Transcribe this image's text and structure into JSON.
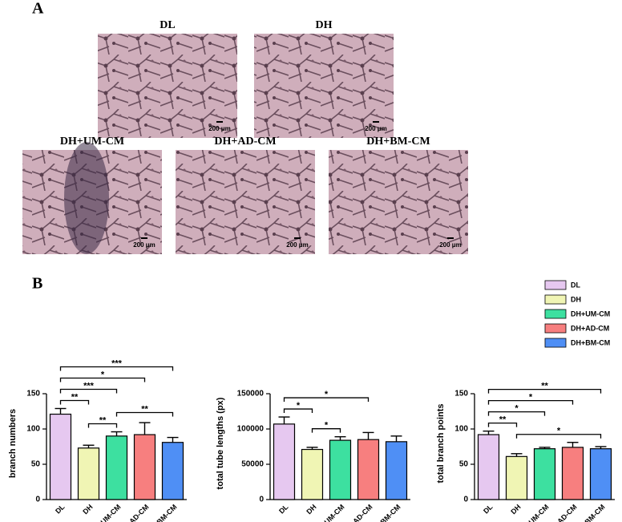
{
  "panel_labels": [
    "A",
    "B"
  ],
  "micrographs": [
    {
      "label": "DL",
      "scale_bar": "200 μm"
    },
    {
      "label": "DH",
      "scale_bar": "200 μm"
    },
    {
      "label": "DH+UM-CM",
      "scale_bar": "200 μm"
    },
    {
      "label": "DH+AD-CM",
      "scale_bar": "200 μm"
    },
    {
      "label": "DH+BM-CM",
      "scale_bar": "200 μm"
    }
  ],
  "legend": {
    "items": [
      {
        "name": "DL",
        "color": "#e6c8f0"
      },
      {
        "name": "DH",
        "color": "#f0f5b4"
      },
      {
        "name": "DH+UM-CM",
        "color": "#3de0a0"
      },
      {
        "name": "DH+AD-CM",
        "color": "#f77f7f"
      },
      {
        "name": "DH+BM-CM",
        "color": "#4f8ff5"
      }
    ]
  },
  "chart_data": [
    {
      "type": "bar",
      "ylabel": "branch numbers",
      "categories": [
        "DL",
        "DH",
        "DH+UM-CM",
        "DH+AD-CM",
        "DH+BM-CM"
      ],
      "values": [
        121,
        73,
        90,
        92,
        81
      ],
      "errors": [
        8,
        4,
        6,
        17,
        7
      ],
      "colors": [
        "#e6c8f0",
        "#f0f5b4",
        "#3de0a0",
        "#f77f7f",
        "#4f8ff5"
      ],
      "ylim": [
        0,
        150
      ],
      "yticks": [
        0,
        50,
        100,
        150
      ],
      "annotations": [
        {
          "from": 1,
          "to": 2,
          "label": "**"
        },
        {
          "from": 2,
          "to": 4,
          "label": "**"
        },
        {
          "from": 0,
          "to": 1,
          "label": "**"
        },
        {
          "from": 0,
          "to": 2,
          "label": "***"
        },
        {
          "from": 0,
          "to": 3,
          "label": "*"
        },
        {
          "from": 0,
          "to": 4,
          "label": "***"
        }
      ]
    },
    {
      "type": "bar",
      "ylabel": "total tube lengths (px)",
      "categories": [
        "DL",
        "DH",
        "DH+UM-CM",
        "DH+AD-CM",
        "DH+BM-CM"
      ],
      "values": [
        107000,
        71000,
        84000,
        85000,
        82000
      ],
      "errors": [
        10000,
        3000,
        5000,
        10000,
        8000
      ],
      "colors": [
        "#e6c8f0",
        "#f0f5b4",
        "#3de0a0",
        "#f77f7f",
        "#4f8ff5"
      ],
      "ylim": [
        0,
        150000
      ],
      "yticks": [
        0,
        50000,
        100000,
        150000
      ],
      "annotations": [
        {
          "from": 1,
          "to": 2,
          "label": "*"
        },
        {
          "from": 0,
          "to": 1,
          "label": "*"
        },
        {
          "from": 0,
          "to": 3,
          "label": "*"
        }
      ]
    },
    {
      "type": "bar",
      "ylabel": "total branch points",
      "categories": [
        "DL",
        "DH",
        "DH+UM-CM",
        "DH+AD-CM",
        "DH+BM-CM"
      ],
      "values": [
        92,
        61,
        72,
        74,
        72
      ],
      "errors": [
        5,
        4,
        2,
        7,
        3
      ],
      "colors": [
        "#e6c8f0",
        "#f0f5b4",
        "#3de0a0",
        "#f77f7f",
        "#4f8ff5"
      ],
      "ylim": [
        0,
        150
      ],
      "yticks": [
        0,
        50,
        100,
        150
      ],
      "annotations": [
        {
          "from": 1,
          "to": 4,
          "label": "*"
        },
        {
          "from": 0,
          "to": 1,
          "label": "**"
        },
        {
          "from": 0,
          "to": 2,
          "label": "*"
        },
        {
          "from": 0,
          "to": 3,
          "label": "*"
        },
        {
          "from": 0,
          "to": 4,
          "label": "**"
        }
      ]
    }
  ]
}
